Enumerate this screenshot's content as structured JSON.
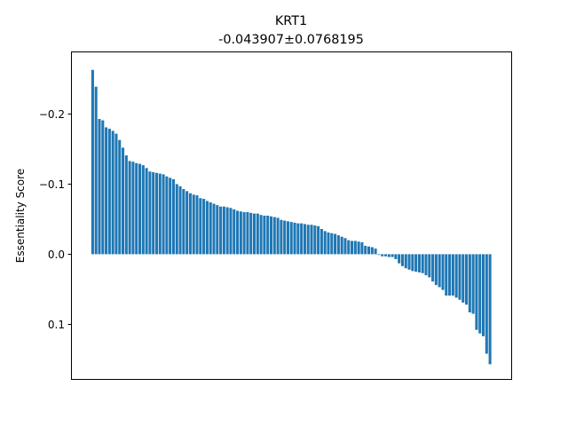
{
  "chart_data": {
    "type": "bar",
    "title": "KRT1",
    "subtitle": "-0.043907±0.0768195",
    "xlabel": "",
    "ylabel": "Essentiality Score",
    "ylim": [
      0.178,
      -0.288
    ],
    "y_axis_inverted": true,
    "yticks": [
      -0.2,
      -0.1,
      0.0,
      0.1
    ],
    "ytick_labels": [
      "−0.2",
      "−0.1",
      "0.0",
      "0.1"
    ],
    "grid": false,
    "bar_color": "#1f77b4",
    "values": [
      -0.263,
      -0.239,
      -0.193,
      -0.191,
      -0.181,
      -0.179,
      -0.176,
      -0.172,
      -0.163,
      -0.152,
      -0.141,
      -0.133,
      -0.132,
      -0.13,
      -0.129,
      -0.127,
      -0.123,
      -0.118,
      -0.117,
      -0.116,
      -0.115,
      -0.114,
      -0.111,
      -0.109,
      -0.107,
      -0.1,
      -0.097,
      -0.093,
      -0.09,
      -0.087,
      -0.085,
      -0.084,
      -0.08,
      -0.079,
      -0.076,
      -0.074,
      -0.072,
      -0.07,
      -0.068,
      -0.068,
      -0.067,
      -0.066,
      -0.064,
      -0.062,
      -0.061,
      -0.06,
      -0.06,
      -0.059,
      -0.058,
      -0.058,
      -0.056,
      -0.055,
      -0.055,
      -0.054,
      -0.053,
      -0.052,
      -0.049,
      -0.048,
      -0.047,
      -0.046,
      -0.045,
      -0.044,
      -0.044,
      -0.043,
      -0.042,
      -0.042,
      -0.041,
      -0.04,
      -0.036,
      -0.033,
      -0.031,
      -0.03,
      -0.029,
      -0.027,
      -0.025,
      -0.023,
      -0.02,
      -0.019,
      -0.019,
      -0.018,
      -0.017,
      -0.012,
      -0.011,
      -0.01,
      -0.008,
      0.001,
      0.003,
      0.003,
      0.004,
      0.004,
      0.007,
      0.013,
      0.017,
      0.02,
      0.022,
      0.024,
      0.025,
      0.026,
      0.027,
      0.03,
      0.033,
      0.039,
      0.044,
      0.047,
      0.051,
      0.059,
      0.059,
      0.059,
      0.062,
      0.065,
      0.069,
      0.072,
      0.083,
      0.085,
      0.108,
      0.113,
      0.117,
      0.142,
      0.157
    ]
  }
}
